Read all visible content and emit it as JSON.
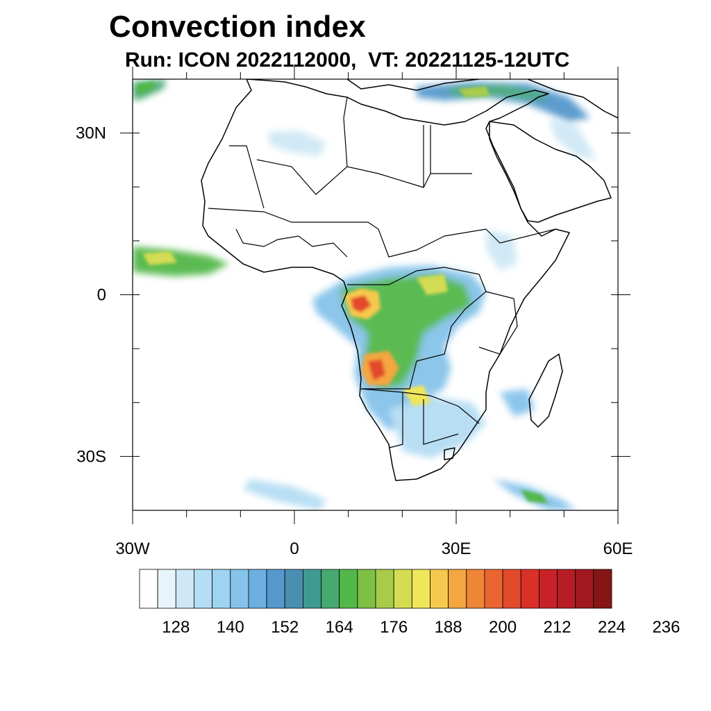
{
  "title": "Convection index",
  "subtitle": "Run: ICON 2022112000,  VT: 20221125-12UTC",
  "map": {
    "region": "Africa",
    "lon_range": [
      -30,
      60
    ],
    "lat_range": [
      -40,
      40
    ],
    "lat_ticks": [
      {
        "lat": 30,
        "label": "30N"
      },
      {
        "lat": 0,
        "label": "0"
      },
      {
        "lat": -30,
        "label": "30S"
      }
    ],
    "lon_ticks": [
      {
        "lon": -30,
        "label": "30W"
      },
      {
        "lon": 0,
        "label": "0"
      },
      {
        "lon": 30,
        "label": "30E"
      },
      {
        "lon": 60,
        "label": "60E"
      }
    ]
  },
  "colorbar": {
    "colors": [
      "#ffffff",
      "#e8f4fb",
      "#cfe8f6",
      "#b5ddf3",
      "#9ed4f2",
      "#86c3ea",
      "#6cafe0",
      "#5598cc",
      "#4a8fb2",
      "#3f9a92",
      "#46a96f",
      "#52b84a",
      "#7dc044",
      "#a8cc4a",
      "#d4dc52",
      "#f0e65a",
      "#f6c94e",
      "#f4a640",
      "#ef8536",
      "#ea6630",
      "#e24a2c",
      "#d93028",
      "#c82228",
      "#b81c26",
      "#a01820",
      "#861616"
    ],
    "tick_values": [
      128,
      140,
      152,
      164,
      176,
      188,
      200,
      212,
      224,
      236
    ]
  }
}
